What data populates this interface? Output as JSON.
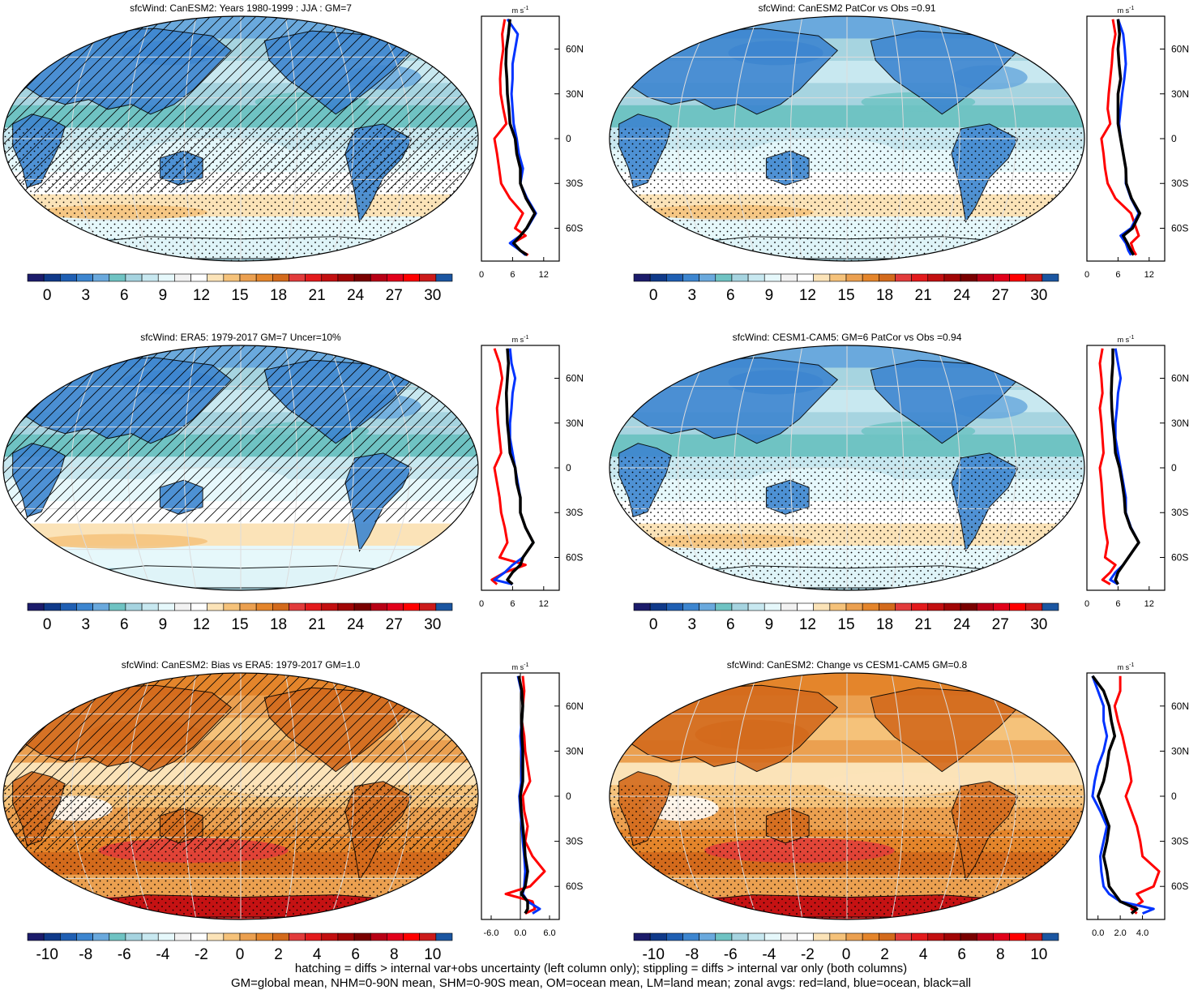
{
  "footer": {
    "line1": "hatching = diffs > internal var+obs uncertainty (left column only); stippling = diffs > internal var only (both columns)",
    "line2": "GM=global mean, NHM=0-90N mean, SHM=0-90S mean, OM=ocean mean, LM=land mean; zonal avgs: red=land, blue=ocean, black=all"
  },
  "colors": {
    "land_line": "#ff0000",
    "ocean_line": "#0033ff",
    "all_line": "#000000",
    "palette": [
      "#1c1c6b",
      "#103a8a",
      "#1f5fb3",
      "#3d86d0",
      "#6aa9dd",
      "#6fc3c3",
      "#a6d4e0",
      "#c8e8f0",
      "#e6f8fb",
      "#f2f2f2",
      "#ffffff",
      "#fbe3b8",
      "#f5c27a",
      "#eba050",
      "#e4852b",
      "#d36a1c",
      "#e23b3b",
      "#e31a1c",
      "#c30f10",
      "#a10505",
      "#7a0000",
      "#b80015",
      "#e2001a",
      "#ff0000",
      "#cc1a1a",
      "#1b56a1"
    ]
  },
  "chart_data": [
    {
      "type": "heatmap",
      "title": "sfcWind: CanESM2: Years 1980-1999 : JJA : GM=7",
      "colorbar_ticks": [
        "0",
        "3",
        "6",
        "9",
        "12",
        "15",
        "18",
        "21",
        "24",
        "27",
        "30"
      ],
      "field_mean": 7,
      "hatched": true,
      "stippled": true,
      "pattern": "blue",
      "zonal": {
        "units": "m s-1",
        "xlim": [
          0,
          15
        ],
        "xticks": [
          "0",
          "6",
          "12"
        ],
        "zero_line": false,
        "lat_ticks": [
          "60N",
          "30N",
          "0",
          "30S",
          "60S"
        ],
        "lat": [
          80,
          70,
          60,
          50,
          40,
          30,
          20,
          10,
          0,
          -10,
          -20,
          -30,
          -40,
          -50,
          -60,
          -65,
          -70,
          -75,
          -78
        ],
        "series": [
          {
            "name": "land",
            "values": [
              4.5,
              4.0,
              4.2,
              3.8,
              3.6,
              3.7,
              4.2,
              4.8,
              2.5,
              3.0,
              3.4,
              3.8,
              5.5,
              8.0,
              6.5,
              8.5,
              6.0,
              7.5,
              9.0
            ]
          },
          {
            "name": "ocean",
            "values": [
              5.0,
              7.0,
              6.5,
              6.0,
              6.0,
              5.8,
              6.0,
              6.2,
              6.8,
              7.2,
              8.0,
              7.5,
              8.8,
              10.5,
              8.8,
              7.5,
              5.5,
              7.5,
              8.5
            ]
          },
          {
            "name": "all",
            "values": [
              5.5,
              5.2,
              4.8,
              4.7,
              4.9,
              5.0,
              5.3,
              5.5,
              6.5,
              6.8,
              7.5,
              7.5,
              8.6,
              10.3,
              8.7,
              7.5,
              6.2,
              7.5,
              8.8
            ]
          }
        ]
      }
    },
    {
      "type": "heatmap",
      "title": "sfcWind: CanESM2 PatCor vs Obs =0.91",
      "colorbar_ticks": [
        "0",
        "3",
        "6",
        "9",
        "12",
        "15",
        "18",
        "21",
        "24",
        "27",
        "30"
      ],
      "field_mean": 7,
      "hatched": false,
      "stippled": true,
      "pattern": "blue",
      "zonal": {
        "units": "m s-1",
        "xlim": [
          0,
          15
        ],
        "xticks": [
          "0",
          "6",
          "12"
        ],
        "zero_line": false,
        "lat_ticks": [
          "60N",
          "30N",
          "0",
          "30S",
          "60S"
        ],
        "lat": [
          80,
          70,
          60,
          50,
          40,
          30,
          20,
          10,
          0,
          -10,
          -20,
          -30,
          -40,
          -50,
          -60,
          -65,
          -70,
          -75,
          -78
        ],
        "series": [
          {
            "name": "land",
            "values": [
              5.0,
              5.5,
              5.0,
              4.8,
              4.5,
              4.2,
              4.0,
              4.5,
              2.8,
              3.2,
              3.5,
              4.0,
              5.5,
              8.5,
              9.5,
              10.0,
              8.5,
              9.0,
              9.5
            ]
          },
          {
            "name": "ocean",
            "values": [
              6.0,
              7.0,
              7.3,
              7.5,
              7.2,
              6.8,
              6.5,
              6.2,
              6.5,
              7.0,
              7.5,
              7.5,
              8.5,
              10.0,
              8.5,
              6.5,
              7.5,
              8.0,
              8.5
            ]
          },
          {
            "name": "all",
            "values": [
              6.0,
              6.3,
              6.0,
              6.2,
              6.5,
              6.0,
              6.0,
              6.0,
              6.5,
              7.0,
              7.5,
              7.6,
              8.6,
              10.2,
              8.8,
              7.0,
              7.8,
              8.5,
              9.0
            ]
          }
        ]
      }
    },
    {
      "type": "heatmap",
      "title": "sfcWind: ERA5: 1979-2017 GM=7 Uncer=10%",
      "colorbar_ticks": [
        "0",
        "3",
        "6",
        "9",
        "12",
        "15",
        "18",
        "21",
        "24",
        "27",
        "30"
      ],
      "field_mean": 7,
      "hatched": true,
      "stippled": false,
      "pattern": "blue",
      "zonal": {
        "units": "m s-1",
        "xlim": [
          0,
          15
        ],
        "xticks": [
          "0",
          "6",
          "12"
        ],
        "zero_line": false,
        "lat_ticks": [
          "60N",
          "30N",
          "0",
          "30S",
          "60S"
        ],
        "lat": [
          80,
          70,
          60,
          50,
          40,
          30,
          20,
          10,
          0,
          -10,
          -20,
          -30,
          -40,
          -50,
          -60,
          -65,
          -70,
          -75,
          -78
        ],
        "series": [
          {
            "name": "land",
            "values": [
              2.5,
              3.5,
              4.0,
              3.5,
              3.0,
              3.2,
              3.5,
              3.8,
              2.5,
              3.0,
              3.5,
              3.8,
              4.5,
              5.0,
              3.5,
              8.5,
              4.5,
              2.0,
              3.0
            ]
          },
          {
            "name": "ocean",
            "values": [
              5.5,
              5.8,
              6.5,
              6.0,
              5.8,
              5.5,
              5.5,
              6.0,
              6.5,
              7.0,
              7.5,
              7.5,
              8.5,
              10.0,
              8.0,
              6.0,
              4.5,
              2.5,
              6.0
            ]
          },
          {
            "name": "all",
            "values": [
              5.0,
              5.2,
              5.0,
              4.8,
              4.9,
              5.0,
              5.3,
              5.5,
              6.5,
              6.8,
              7.5,
              7.5,
              8.5,
              10.0,
              8.0,
              7.5,
              6.0,
              5.0,
              6.0
            ]
          }
        ]
      }
    },
    {
      "type": "heatmap",
      "title": "sfcWind: CESM1-CAM5: GM=6 PatCor vs Obs =0.94",
      "colorbar_ticks": [
        "0",
        "3",
        "6",
        "9",
        "12",
        "15",
        "18",
        "21",
        "24",
        "27",
        "30"
      ],
      "field_mean": 6,
      "hatched": false,
      "stippled": true,
      "pattern": "blue",
      "zonal": {
        "units": "m s-1",
        "xlim": [
          0,
          15
        ],
        "xticks": [
          "0",
          "6",
          "12"
        ],
        "zero_line": false,
        "lat_ticks": [
          "60N",
          "30N",
          "0",
          "30S",
          "60S"
        ],
        "lat": [
          80,
          70,
          60,
          50,
          40,
          30,
          20,
          10,
          0,
          -10,
          -20,
          -30,
          -40,
          -50,
          -60,
          -65,
          -70,
          -75,
          -78
        ],
        "series": [
          {
            "name": "land",
            "values": [
              3.0,
              2.5,
              2.8,
              3.0,
              2.5,
              2.8,
              3.0,
              3.2,
              2.5,
              2.8,
              3.0,
              3.2,
              3.5,
              4.0,
              3.5,
              5.5,
              4.5,
              3.0,
              4.5
            ]
          },
          {
            "name": "ocean",
            "values": [
              5.5,
              6.0,
              6.5,
              6.0,
              5.8,
              5.5,
              5.5,
              6.0,
              6.5,
              7.0,
              7.5,
              7.5,
              8.5,
              10.0,
              8.0,
              7.0,
              5.5,
              4.5,
              6.0
            ]
          },
          {
            "name": "all",
            "values": [
              5.0,
              5.0,
              4.8,
              4.7,
              4.8,
              5.0,
              5.3,
              5.5,
              6.3,
              6.8,
              7.2,
              7.4,
              8.4,
              10.0,
              8.0,
              7.0,
              6.0,
              5.5,
              6.0
            ]
          }
        ]
      }
    },
    {
      "type": "heatmap",
      "title": "sfcWind: CanESM2: Bias vs ERA5: 1979-2017 GM=1.0",
      "colorbar_ticks": [
        "-10",
        "-8",
        "-6",
        "-4",
        "-2",
        "0",
        "2",
        "4",
        "6",
        "8",
        "10"
      ],
      "field_mean": 1.0,
      "hatched": true,
      "stippled": true,
      "pattern": "orange",
      "zonal": {
        "units": "m s-1",
        "xlim": [
          -8,
          8
        ],
        "xticks": [
          "-6.0",
          "0.0",
          "6.0"
        ],
        "zero_line": true,
        "lat_ticks": [
          "60N",
          "30N",
          "0",
          "30S",
          "60S"
        ],
        "lat": [
          80,
          70,
          60,
          50,
          40,
          30,
          20,
          10,
          0,
          -10,
          -20,
          -30,
          -40,
          -50,
          -60,
          -65,
          -70,
          -75,
          -78
        ],
        "series": [
          {
            "name": "land",
            "values": [
              0.5,
              0.8,
              0.5,
              0.3,
              0.8,
              1.0,
              1.5,
              2.0,
              0.5,
              0.8,
              1.5,
              1.0,
              2.5,
              5.0,
              2.0,
              -3.0,
              2.5,
              3.0,
              1.0
            ]
          },
          {
            "name": "ocean",
            "values": [
              -0.5,
              0.2,
              0.5,
              0.3,
              0.0,
              0.2,
              0.3,
              0.2,
              -0.2,
              0.0,
              0.3,
              0.5,
              0.8,
              1.0,
              0.8,
              0.5,
              1.5,
              4.0,
              2.5
            ]
          },
          {
            "name": "all",
            "values": [
              -0.3,
              0.3,
              0.5,
              0.3,
              0.3,
              0.5,
              0.5,
              0.5,
              0.0,
              0.2,
              0.5,
              0.8,
              1.0,
              1.5,
              1.0,
              0.2,
              1.5,
              1.5,
              1.0
            ]
          }
        ]
      }
    },
    {
      "type": "heatmap",
      "title": "sfcWind: CanESM2: Change vs CESM1-CAM5 GM=0.8",
      "colorbar_ticks": [
        "-10",
        "-8",
        "-6",
        "-4",
        "-2",
        "0",
        "2",
        "4",
        "6",
        "8",
        "10"
      ],
      "field_mean": 0.8,
      "hatched": false,
      "stippled": true,
      "pattern": "orange",
      "zonal": {
        "units": "m s-1",
        "xlim": [
          -1,
          6
        ],
        "xticks": [
          "0.0",
          "2.0",
          "4.0"
        ],
        "zero_line": false,
        "lat_ticks": [
          "60N",
          "30N",
          "0",
          "30S",
          "60S"
        ],
        "lat": [
          80,
          70,
          60,
          50,
          40,
          30,
          20,
          10,
          0,
          -10,
          -20,
          -30,
          -40,
          -50,
          -60,
          -65,
          -70,
          -75,
          -78
        ],
        "series": [
          {
            "name": "land",
            "values": [
              2.0,
              2.0,
              1.5,
              1.8,
              2.2,
              2.5,
              2.8,
              3.0,
              2.5,
              3.0,
              3.5,
              3.8,
              4.0,
              5.5,
              5.0,
              3.5,
              4.0,
              3.0,
              3.5
            ]
          },
          {
            "name": "ocean",
            "values": [
              -0.5,
              0.0,
              0.5,
              0.5,
              0.8,
              0.5,
              0.0,
              -0.3,
              -0.5,
              0.2,
              0.8,
              0.5,
              0.2,
              0.3,
              0.5,
              1.0,
              2.0,
              5.0,
              4.0
            ]
          },
          {
            "name": "all",
            "values": [
              -0.5,
              0.5,
              1.0,
              1.2,
              1.5,
              1.0,
              0.8,
              0.5,
              0.0,
              0.5,
              1.0,
              0.8,
              0.5,
              0.8,
              1.0,
              1.5,
              2.0,
              3.5,
              3.0
            ]
          }
        ]
      }
    }
  ]
}
